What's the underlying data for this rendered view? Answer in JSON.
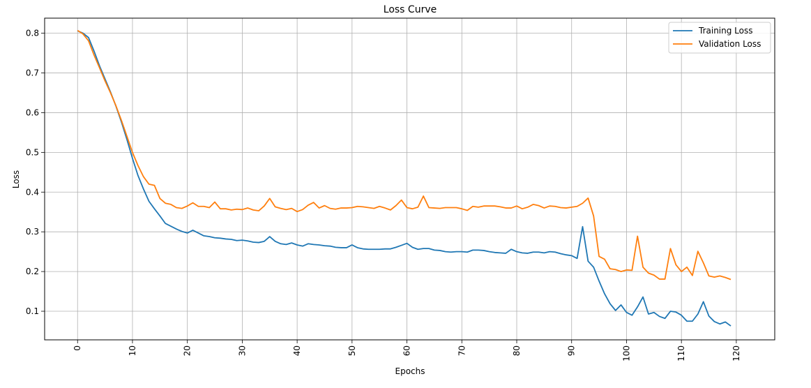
{
  "chart_data": {
    "type": "line",
    "title": "Loss Curve",
    "xlabel": "Epochs",
    "ylabel": "Loss",
    "xlim": [
      -6,
      127
    ],
    "ylim": [
      0.028,
      0.838
    ],
    "xticks": [
      0,
      10,
      20,
      30,
      40,
      50,
      60,
      70,
      80,
      90,
      100,
      110,
      120
    ],
    "yticks": [
      0.1,
      0.2,
      0.3,
      0.4,
      0.5,
      0.6,
      0.7,
      0.8
    ],
    "grid": true,
    "legend_position": "top-right",
    "x_start": 0,
    "series": [
      {
        "name": "Training Loss",
        "color": "#1f77b4",
        "values": [
          0.806,
          0.8,
          0.789,
          0.755,
          0.718,
          0.685,
          0.652,
          0.616,
          0.576,
          0.532,
          0.485,
          0.442,
          0.408,
          0.377,
          0.358,
          0.34,
          0.321,
          0.314,
          0.307,
          0.301,
          0.297,
          0.304,
          0.297,
          0.29,
          0.288,
          0.285,
          0.284,
          0.282,
          0.281,
          0.278,
          0.279,
          0.277,
          0.274,
          0.273,
          0.276,
          0.288,
          0.276,
          0.27,
          0.268,
          0.272,
          0.267,
          0.264,
          0.27,
          0.268,
          0.267,
          0.265,
          0.264,
          0.261,
          0.26,
          0.26,
          0.267,
          0.26,
          0.257,
          0.256,
          0.256,
          0.256,
          0.257,
          0.257,
          0.261,
          0.266,
          0.271,
          0.261,
          0.256,
          0.258,
          0.258,
          0.254,
          0.253,
          0.25,
          0.249,
          0.25,
          0.25,
          0.249,
          0.254,
          0.254,
          0.253,
          0.25,
          0.248,
          0.247,
          0.246,
          0.256,
          0.25,
          0.247,
          0.246,
          0.249,
          0.249,
          0.247,
          0.25,
          0.249,
          0.245,
          0.242,
          0.24,
          0.233,
          0.313,
          0.226,
          0.211,
          0.176,
          0.144,
          0.119,
          0.102,
          0.116,
          0.097,
          0.09,
          0.111,
          0.136,
          0.093,
          0.097,
          0.087,
          0.082,
          0.1,
          0.098,
          0.09,
          0.075,
          0.075,
          0.093,
          0.124,
          0.088,
          0.074,
          0.068,
          0.073,
          0.063
        ]
      },
      {
        "name": "Validation Loss",
        "color": "#ff7f0e",
        "values": [
          0.807,
          0.798,
          0.781,
          0.745,
          0.713,
          0.68,
          0.65,
          0.617,
          0.58,
          0.54,
          0.5,
          0.467,
          0.439,
          0.42,
          0.417,
          0.384,
          0.372,
          0.369,
          0.361,
          0.359,
          0.365,
          0.373,
          0.364,
          0.364,
          0.361,
          0.375,
          0.358,
          0.358,
          0.355,
          0.357,
          0.356,
          0.36,
          0.355,
          0.353,
          0.365,
          0.384,
          0.363,
          0.359,
          0.356,
          0.359,
          0.351,
          0.356,
          0.367,
          0.374,
          0.36,
          0.366,
          0.359,
          0.357,
          0.36,
          0.36,
          0.361,
          0.364,
          0.363,
          0.361,
          0.359,
          0.364,
          0.36,
          0.355,
          0.366,
          0.38,
          0.361,
          0.358,
          0.362,
          0.39,
          0.361,
          0.36,
          0.359,
          0.361,
          0.361,
          0.361,
          0.358,
          0.354,
          0.364,
          0.362,
          0.365,
          0.365,
          0.365,
          0.363,
          0.36,
          0.36,
          0.365,
          0.358,
          0.362,
          0.369,
          0.366,
          0.36,
          0.365,
          0.364,
          0.361,
          0.36,
          0.362,
          0.364,
          0.372,
          0.385,
          0.34,
          0.238,
          0.231,
          0.207,
          0.205,
          0.2,
          0.204,
          0.203,
          0.289,
          0.211,
          0.196,
          0.191,
          0.181,
          0.181,
          0.258,
          0.217,
          0.2,
          0.211,
          0.19,
          0.251,
          0.222,
          0.189,
          0.186,
          0.189,
          0.185,
          0.18
        ]
      }
    ]
  }
}
